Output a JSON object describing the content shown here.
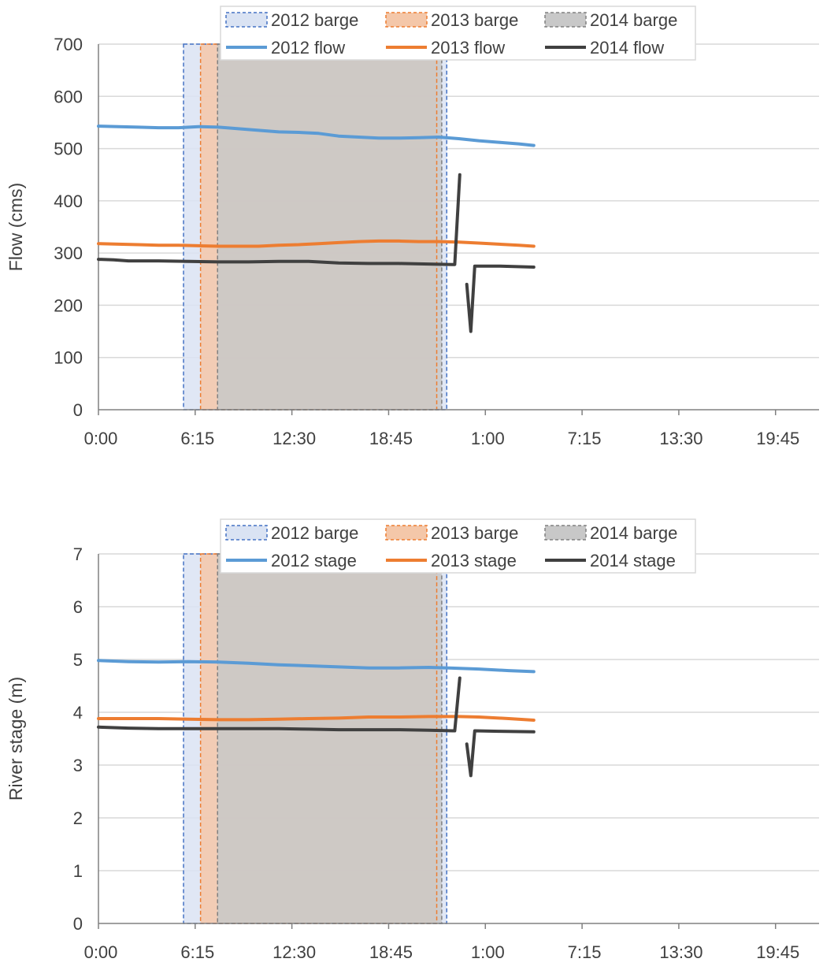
{
  "chart_data": [
    {
      "type": "line",
      "title": "",
      "xlabel": "",
      "ylabel": "Flow (cms)",
      "ylim": [
        0,
        700
      ],
      "yticks": [
        "0",
        "100",
        "200",
        "300",
        "400",
        "500",
        "600",
        "700"
      ],
      "xlim_hours": [
        0,
        72
      ],
      "xticks": [
        "0:00",
        "6:15",
        "12:30",
        "18:45",
        "1:00",
        "7:15",
        "13:30",
        "19:45"
      ],
      "grid": "horizontal",
      "legend_position": "top",
      "barge_periods": [
        {
          "name": "2012 barge",
          "color": "#4472C4",
          "fill": "#dae3f3",
          "start_hours": 8.5,
          "end_hours": 34.8
        },
        {
          "name": "2013 barge",
          "color": "#ED7D31",
          "fill": "#f4c7a9",
          "start_hours": 10.2,
          "end_hours": 33.8
        },
        {
          "name": "2014 barge",
          "color": "#808080",
          "fill": "#c8c8c8",
          "start_hours": 11.9,
          "end_hours": 34.3
        }
      ],
      "series": [
        {
          "name": "2012 flow",
          "color": "#5B9BD5",
          "segments": [
            [
              [
                0,
                543
              ],
              [
                2,
                542
              ],
              [
                4,
                541
              ],
              [
                6,
                540
              ],
              [
                8,
                540
              ],
              [
                10,
                542
              ],
              [
                12,
                541
              ],
              [
                14,
                538
              ],
              [
                16,
                535
              ],
              [
                18,
                532
              ],
              [
                20,
                531
              ],
              [
                22,
                529
              ],
              [
                24,
                524
              ],
              [
                26,
                522
              ],
              [
                28,
                520
              ],
              [
                30,
                520
              ],
              [
                32,
                521
              ],
              [
                34,
                522
              ],
              [
                36,
                519
              ],
              [
                38,
                515
              ],
              [
                40,
                512
              ],
              [
                42,
                509
              ],
              [
                43.5,
                506
              ]
            ]
          ]
        },
        {
          "name": "2013 flow",
          "color": "#ED7D31",
          "segments": [
            [
              [
                0,
                318
              ],
              [
                2,
                317
              ],
              [
                4,
                316
              ],
              [
                6,
                315
              ],
              [
                8,
                315
              ],
              [
                10,
                314
              ],
              [
                12,
                313
              ],
              [
                14,
                313
              ],
              [
                16,
                313
              ],
              [
                18,
                315
              ],
              [
                20,
                316
              ],
              [
                22,
                318
              ],
              [
                24,
                320
              ],
              [
                26,
                322
              ],
              [
                28,
                323
              ],
              [
                30,
                323
              ],
              [
                32,
                322
              ],
              [
                34,
                322
              ],
              [
                36,
                321
              ],
              [
                38,
                319
              ],
              [
                40,
                317
              ],
              [
                42,
                315
              ],
              [
                43.5,
                313
              ]
            ]
          ]
        },
        {
          "name": "2014 flow",
          "color": "#404040",
          "segments": [
            [
              [
                0,
                288
              ],
              [
                1.5,
                287
              ],
              [
                3,
                285
              ],
              [
                6,
                285
              ],
              [
                9,
                284
              ],
              [
                12,
                283
              ],
              [
                15,
                283
              ],
              [
                18,
                284
              ],
              [
                21,
                284
              ],
              [
                24,
                281
              ],
              [
                27,
                280
              ],
              [
                30,
                280
              ],
              [
                33,
                279
              ],
              [
                35.4,
                278
              ],
              [
                35.6,
                278
              ],
              [
                36.1,
                450
              ]
            ],
            [
              [
                36.8,
                240
              ],
              [
                37.2,
                150
              ],
              [
                37.6,
                275
              ],
              [
                40,
                275
              ],
              [
                43.5,
                273
              ]
            ]
          ]
        }
      ]
    },
    {
      "type": "line",
      "title": "",
      "xlabel": "",
      "ylabel": "River stage (m)",
      "ylim": [
        0,
        7
      ],
      "yticks": [
        "0",
        "1",
        "2",
        "3",
        "4",
        "5",
        "6",
        "7"
      ],
      "xlim_hours": [
        0,
        72
      ],
      "xticks": [
        "0:00",
        "6:15",
        "12:30",
        "18:45",
        "1:00",
        "7:15",
        "13:30",
        "19:45"
      ],
      "grid": "horizontal",
      "legend_position": "top",
      "barge_periods": [
        {
          "name": "2012 barge",
          "color": "#4472C4",
          "fill": "#dae3f3",
          "start_hours": 8.5,
          "end_hours": 34.8
        },
        {
          "name": "2013 barge",
          "color": "#ED7D31",
          "fill": "#f4c7a9",
          "start_hours": 10.2,
          "end_hours": 33.8
        },
        {
          "name": "2014 barge",
          "color": "#808080",
          "fill": "#c8c8c8",
          "start_hours": 11.9,
          "end_hours": 34.3
        }
      ],
      "series": [
        {
          "name": "2012 stage",
          "color": "#5B9BD5",
          "segments": [
            [
              [
                0,
                4.98
              ],
              [
                3,
                4.96
              ],
              [
                6,
                4.95
              ],
              [
                9,
                4.96
              ],
              [
                12,
                4.95
              ],
              [
                15,
                4.93
              ],
              [
                18,
                4.9
              ],
              [
                21,
                4.88
              ],
              [
                24,
                4.86
              ],
              [
                27,
                4.84
              ],
              [
                30,
                4.84
              ],
              [
                33,
                4.85
              ],
              [
                35,
                4.84
              ],
              [
                38,
                4.82
              ],
              [
                41,
                4.79
              ],
              [
                43.5,
                4.77
              ]
            ]
          ]
        },
        {
          "name": "2013 stage",
          "color": "#ED7D31",
          "segments": [
            [
              [
                0,
                3.88
              ],
              [
                3,
                3.88
              ],
              [
                6,
                3.88
              ],
              [
                9,
                3.87
              ],
              [
                12,
                3.86
              ],
              [
                15,
                3.86
              ],
              [
                18,
                3.87
              ],
              [
                21,
                3.88
              ],
              [
                24,
                3.89
              ],
              [
                27,
                3.91
              ],
              [
                30,
                3.91
              ],
              [
                33,
                3.92
              ],
              [
                36,
                3.92
              ],
              [
                38,
                3.91
              ],
              [
                41,
                3.88
              ],
              [
                43.5,
                3.85
              ]
            ]
          ]
        },
        {
          "name": "2014 stage",
          "color": "#404040",
          "segments": [
            [
              [
                0,
                3.72
              ],
              [
                3,
                3.7
              ],
              [
                6,
                3.69
              ],
              [
                9,
                3.69
              ],
              [
                12,
                3.69
              ],
              [
                15,
                3.69
              ],
              [
                18,
                3.69
              ],
              [
                21,
                3.68
              ],
              [
                24,
                3.67
              ],
              [
                27,
                3.67
              ],
              [
                30,
                3.67
              ],
              [
                33,
                3.66
              ],
              [
                35.4,
                3.65
              ],
              [
                35.6,
                3.65
              ],
              [
                36.1,
                4.65
              ]
            ],
            [
              [
                36.8,
                3.4
              ],
              [
                37.2,
                2.8
              ],
              [
                37.6,
                3.65
              ],
              [
                40,
                3.64
              ],
              [
                43.5,
                3.63
              ]
            ]
          ]
        }
      ]
    }
  ]
}
